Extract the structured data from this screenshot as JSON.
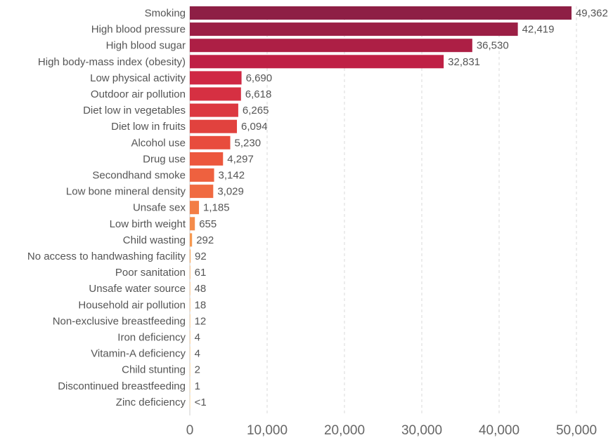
{
  "chart_data": {
    "type": "bar",
    "orientation": "horizontal",
    "title": "",
    "xlabel": "",
    "ylabel": "",
    "xlim": [
      0,
      50000
    ],
    "grid": true,
    "categories": [
      "Smoking",
      "High blood pressure",
      "High blood sugar",
      "High body-mass index (obesity)",
      "Low physical activity",
      "Outdoor air pollution",
      "Diet low in vegetables",
      "Diet low in fruits",
      "Alcohol use",
      "Drug use",
      "Secondhand smoke",
      "Low bone mineral density",
      "Unsafe sex",
      "Low birth weight",
      "Child wasting",
      "No access to handwashing facility",
      "Poor sanitation",
      "Unsafe water source",
      "Household air pollution",
      "Non-exclusive breastfeeding",
      "Iron deficiency",
      "Vitamin-A deficiency",
      "Child stunting",
      "Discontinued breastfeeding",
      "Zinc deficiency"
    ],
    "values": [
      49362,
      42419,
      36530,
      32831,
      6690,
      6618,
      6265,
      6094,
      5230,
      4297,
      3142,
      3029,
      1185,
      655,
      292,
      92,
      61,
      48,
      18,
      12,
      4,
      4,
      2,
      1,
      0.4
    ],
    "value_labels": [
      "49,362",
      "42,419",
      "36,530",
      "32,831",
      "6,690",
      "6,618",
      "6,265",
      "6,094",
      "5,230",
      "4,297",
      "3,142",
      "3,029",
      "1,185",
      "655",
      "292",
      "92",
      "61",
      "48",
      "18",
      "12",
      "4",
      "4",
      "2",
      "1",
      "<1"
    ],
    "bar_colors": [
      "#8e1f45",
      "#9b1f45",
      "#ad1f45",
      "#bf2045",
      "#cf2844",
      "#d63042",
      "#dc3840",
      "#e1423e",
      "#e84c3d",
      "#ec573d",
      "#ee613f",
      "#f06a41",
      "#f37d45",
      "#f48b4a",
      "#f6984f",
      "#f7a456",
      "#f7aa5c",
      "#f8b063",
      "#f9b66a",
      "#f9bc71",
      "#fac278",
      "#fac77f",
      "#fbcc86",
      "#fbd18d",
      "#fcd694"
    ],
    "x_ticks": [
      0,
      10000,
      20000,
      30000,
      40000,
      50000
    ],
    "x_tick_labels": [
      "0",
      "10,000",
      "20,000",
      "30,000",
      "40,000",
      "50,000"
    ]
  }
}
